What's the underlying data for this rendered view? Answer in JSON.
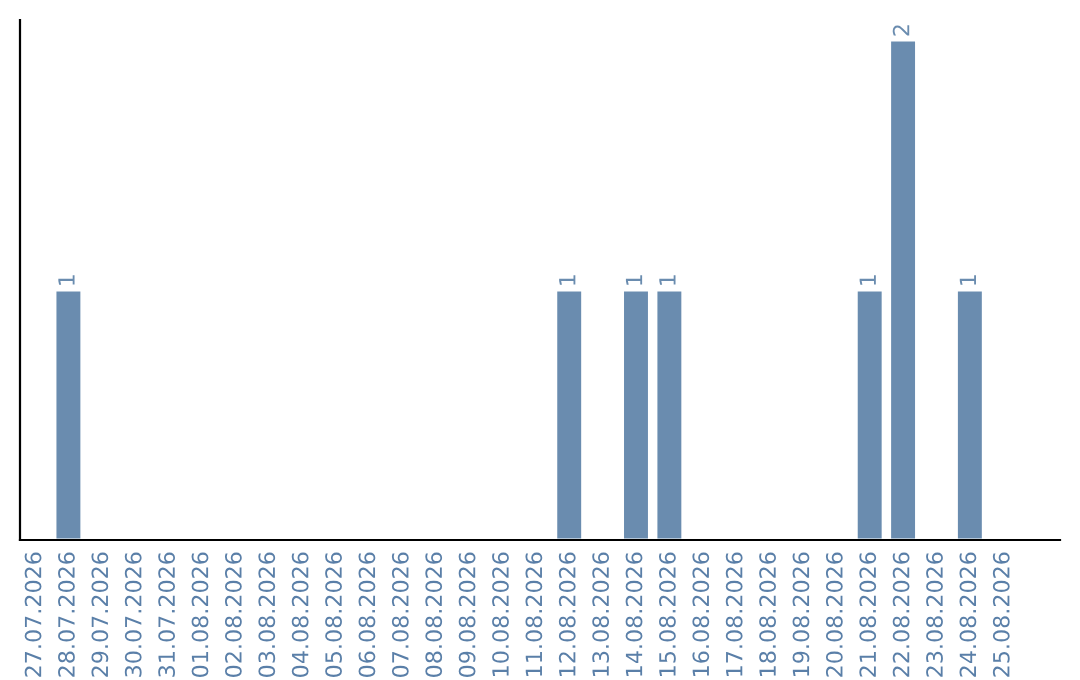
{
  "chart_data": {
    "type": "bar",
    "categories": [
      "27.07.2026",
      "28.07.2026",
      "29.07.2026",
      "30.07.2026",
      "31.07.2026",
      "01.08.2026",
      "02.08.2026",
      "03.08.2026",
      "04.08.2026",
      "05.08.2026",
      "06.08.2026",
      "07.08.2026",
      "08.08.2026",
      "09.08.2026",
      "10.08.2026",
      "11.08.2026",
      "12.08.2026",
      "13.08.2026",
      "14.08.2026",
      "15.08.2026",
      "16.08.2026",
      "17.08.2026",
      "18.08.2026",
      "19.08.2026",
      "20.08.2026",
      "21.08.2026",
      "22.08.2026",
      "23.08.2026",
      "24.08.2026",
      "25.08.2026"
    ],
    "values": [
      null,
      1,
      null,
      null,
      null,
      null,
      null,
      null,
      null,
      null,
      null,
      null,
      null,
      null,
      null,
      null,
      1,
      null,
      1,
      1,
      null,
      null,
      null,
      null,
      null,
      1,
      2,
      null,
      1,
      null
    ],
    "data_labels": true,
    "color": "#6a8caf",
    "ylim": [
      0,
      2.08
    ],
    "tick_labels": "x",
    "grid": false,
    "legend": false
  }
}
